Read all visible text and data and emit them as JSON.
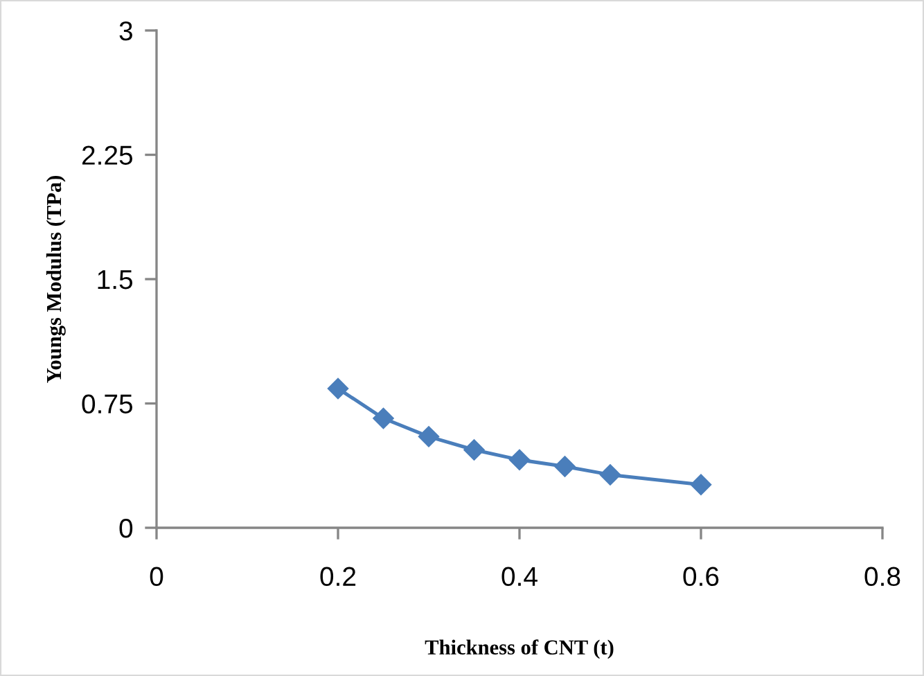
{
  "chart_data": {
    "type": "line",
    "xlabel": "Thickness of CNT (t)",
    "ylabel": "Youngs Modulus (TPa)",
    "x": [
      0.2,
      0.25,
      0.3,
      0.35,
      0.4,
      0.45,
      0.5,
      0.6
    ],
    "series": [
      {
        "color": "#4a7ebb",
        "values": [
          0.84,
          0.66,
          0.55,
          0.47,
          0.41,
          0.37,
          0.32,
          0.26
        ]
      }
    ],
    "xlim": [
      0,
      0.8
    ],
    "xticks": [
      0,
      0.2,
      0.4,
      0.6,
      0.8
    ],
    "ylim": [
      0,
      3
    ],
    "yticks": [
      0,
      0.75,
      1.5,
      2.25,
      3
    ],
    "grid": false,
    "legend": false,
    "marker": "diamond",
    "line_style": "solid"
  }
}
